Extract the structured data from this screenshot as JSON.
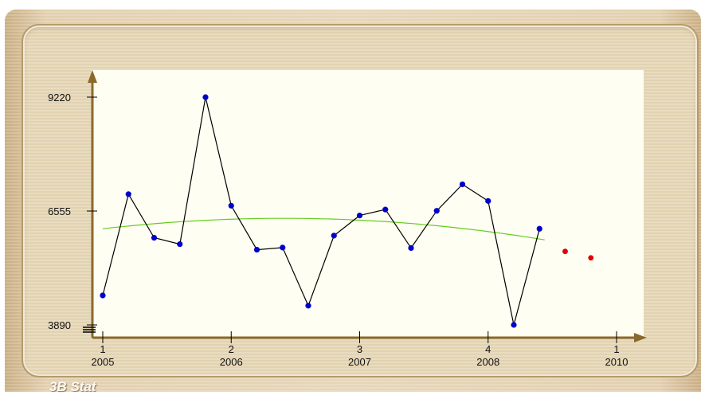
{
  "footer": {
    "label": "3B Stat"
  },
  "colors": {
    "series": "#000000",
    "points": "#0000cc",
    "forecast": "#e00000",
    "trend": "#66cc22",
    "axis": "#8a6a2a",
    "plot_bg": "#fefef2"
  },
  "chart_data": {
    "type": "line",
    "y_ticks": [
      "9220",
      "6555",
      "3890"
    ],
    "y_tick_values": [
      9220,
      6555,
      3890
    ],
    "ylim": [
      3890,
      9220
    ],
    "x_ticks": [
      {
        "quarter": "1",
        "year": "2005",
        "x": 0
      },
      {
        "quarter": "2",
        "year": "2006",
        "x": 5
      },
      {
        "quarter": "3",
        "year": "2007",
        "x": 10
      },
      {
        "quarter": "4",
        "year": "2008",
        "x": 15
      },
      {
        "quarter": "1",
        "year": "2010",
        "x": 20
      }
    ],
    "xlim": [
      0,
      20
    ],
    "series": [
      {
        "values": [
          {
            "x": 0,
            "y": 4580
          },
          {
            "x": 1,
            "y": 6950
          },
          {
            "x": 2,
            "y": 5930
          },
          {
            "x": 3,
            "y": 5780
          },
          {
            "x": 4,
            "y": 9220
          },
          {
            "x": 5,
            "y": 6680
          },
          {
            "x": 6,
            "y": 5650
          },
          {
            "x": 7,
            "y": 5700
          },
          {
            "x": 8,
            "y": 4340
          },
          {
            "x": 9,
            "y": 5980
          },
          {
            "x": 10,
            "y": 6450
          },
          {
            "x": 11,
            "y": 6590
          },
          {
            "x": 12,
            "y": 5690
          },
          {
            "x": 13,
            "y": 6560
          },
          {
            "x": 14,
            "y": 7180
          },
          {
            "x": 15,
            "y": 6790
          },
          {
            "x": 16,
            "y": 3890
          },
          {
            "x": 17,
            "y": 6140
          }
        ]
      }
    ],
    "forecast": [
      {
        "x": 18,
        "y": 5610
      },
      {
        "x": 19,
        "y": 5460
      }
    ],
    "trend": {
      "x_start": 0,
      "x_end": 17.2,
      "peak_x": 8,
      "peak_y": 6380,
      "y_at_start": 6140,
      "y_at_end": 5880
    },
    "grid": false
  }
}
